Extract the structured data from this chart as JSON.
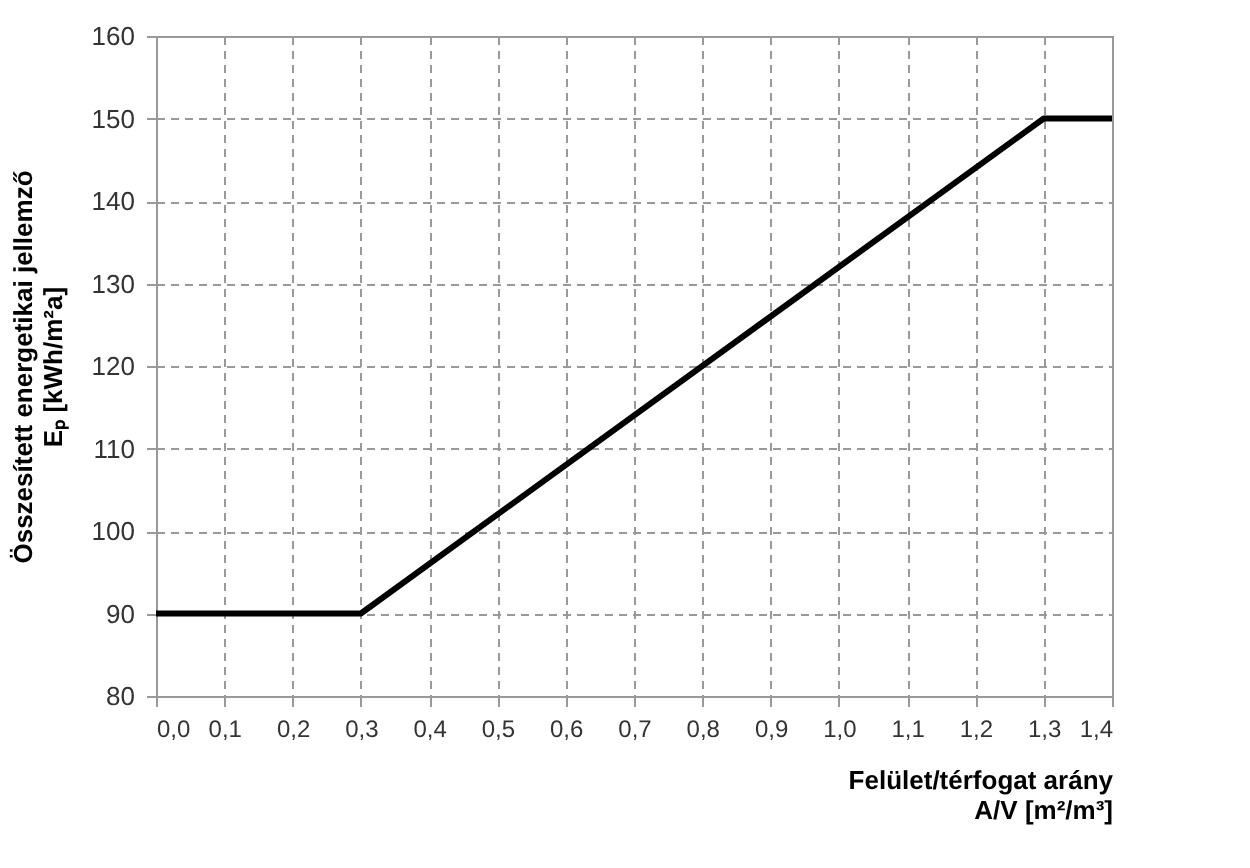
{
  "chart_data": {
    "type": "line",
    "xlabel": "Felület/térfogat arány\nA/V [m²/m³]",
    "ylabel": "Összesített energetikai jellemző\nEₚ [kWh/m²a]",
    "x": [
      0,
      0.3,
      1.3,
      1.4
    ],
    "series": [
      {
        "color": "#000000",
        "values": [
          90,
          90,
          150,
          150
        ]
      }
    ],
    "xlim": [
      0,
      1.4
    ],
    "xticks": [
      {
        "value": 0,
        "label": "0,0"
      },
      {
        "value": 0.1,
        "label": "0,1"
      },
      {
        "value": 0.2,
        "label": "0,2"
      },
      {
        "value": 0.3,
        "label": "0,3"
      },
      {
        "value": 0.4,
        "label": "0,4"
      },
      {
        "value": 0.5,
        "label": "0,5"
      },
      {
        "value": 0.6,
        "label": "0,6"
      },
      {
        "value": 0.7,
        "label": "0,7"
      },
      {
        "value": 0.8,
        "label": "0,8"
      },
      {
        "value": 0.9,
        "label": "0,9"
      },
      {
        "value": 1.0,
        "label": "1,0"
      },
      {
        "value": 1.1,
        "label": "1,1"
      },
      {
        "value": 1.2,
        "label": "1,2"
      },
      {
        "value": 1.3,
        "label": "1,3"
      },
      {
        "value": 1.4,
        "label": "1,4"
      }
    ],
    "ylim": [
      80,
      160
    ],
    "yticks": [
      80,
      90,
      100,
      110,
      120,
      130,
      140,
      150,
      160
    ],
    "grid": true,
    "line_style": "solid",
    "marker": "none"
  }
}
